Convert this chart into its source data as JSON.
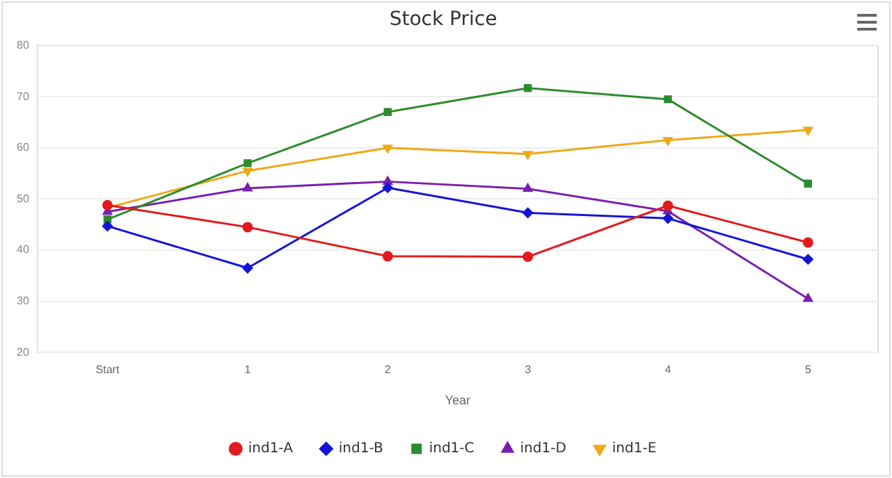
{
  "chart_data": {
    "type": "line",
    "title": "Stock Price",
    "xlabel": "Year",
    "categories": [
      "Start",
      "1",
      "2",
      "3",
      "4",
      "5"
    ],
    "series": [
      {
        "name": "ind1-A",
        "color": "#e31a1c",
        "marker": "circle",
        "values": [
          48.8,
          44.5,
          38.8,
          38.7,
          48.7,
          41.5
        ]
      },
      {
        "name": "ind1-B",
        "color": "#1515d8",
        "marker": "diamond",
        "values": [
          44.7,
          36.5,
          52.2,
          47.3,
          46.2,
          38.2
        ]
      },
      {
        "name": "ind1-C",
        "color": "#2e8b2e",
        "marker": "square",
        "values": [
          46,
          57,
          67,
          71.7,
          69.5,
          53
        ]
      },
      {
        "name": "ind1-D",
        "color": "#7a1fb0",
        "marker": "triangle",
        "values": [
          47.5,
          52.1,
          53.4,
          52,
          47.6,
          30.5
        ]
      },
      {
        "name": "ind1-E",
        "color": "#f0a818",
        "marker": "triangle-down",
        "values": [
          48.3,
          55.5,
          60,
          58.8,
          61.5,
          63.5
        ]
      }
    ],
    "ylim": [
      20,
      80
    ],
    "yticks": [
      20,
      30,
      40,
      50,
      60,
      70,
      80
    ],
    "grid": "y",
    "legend": "bottom"
  }
}
